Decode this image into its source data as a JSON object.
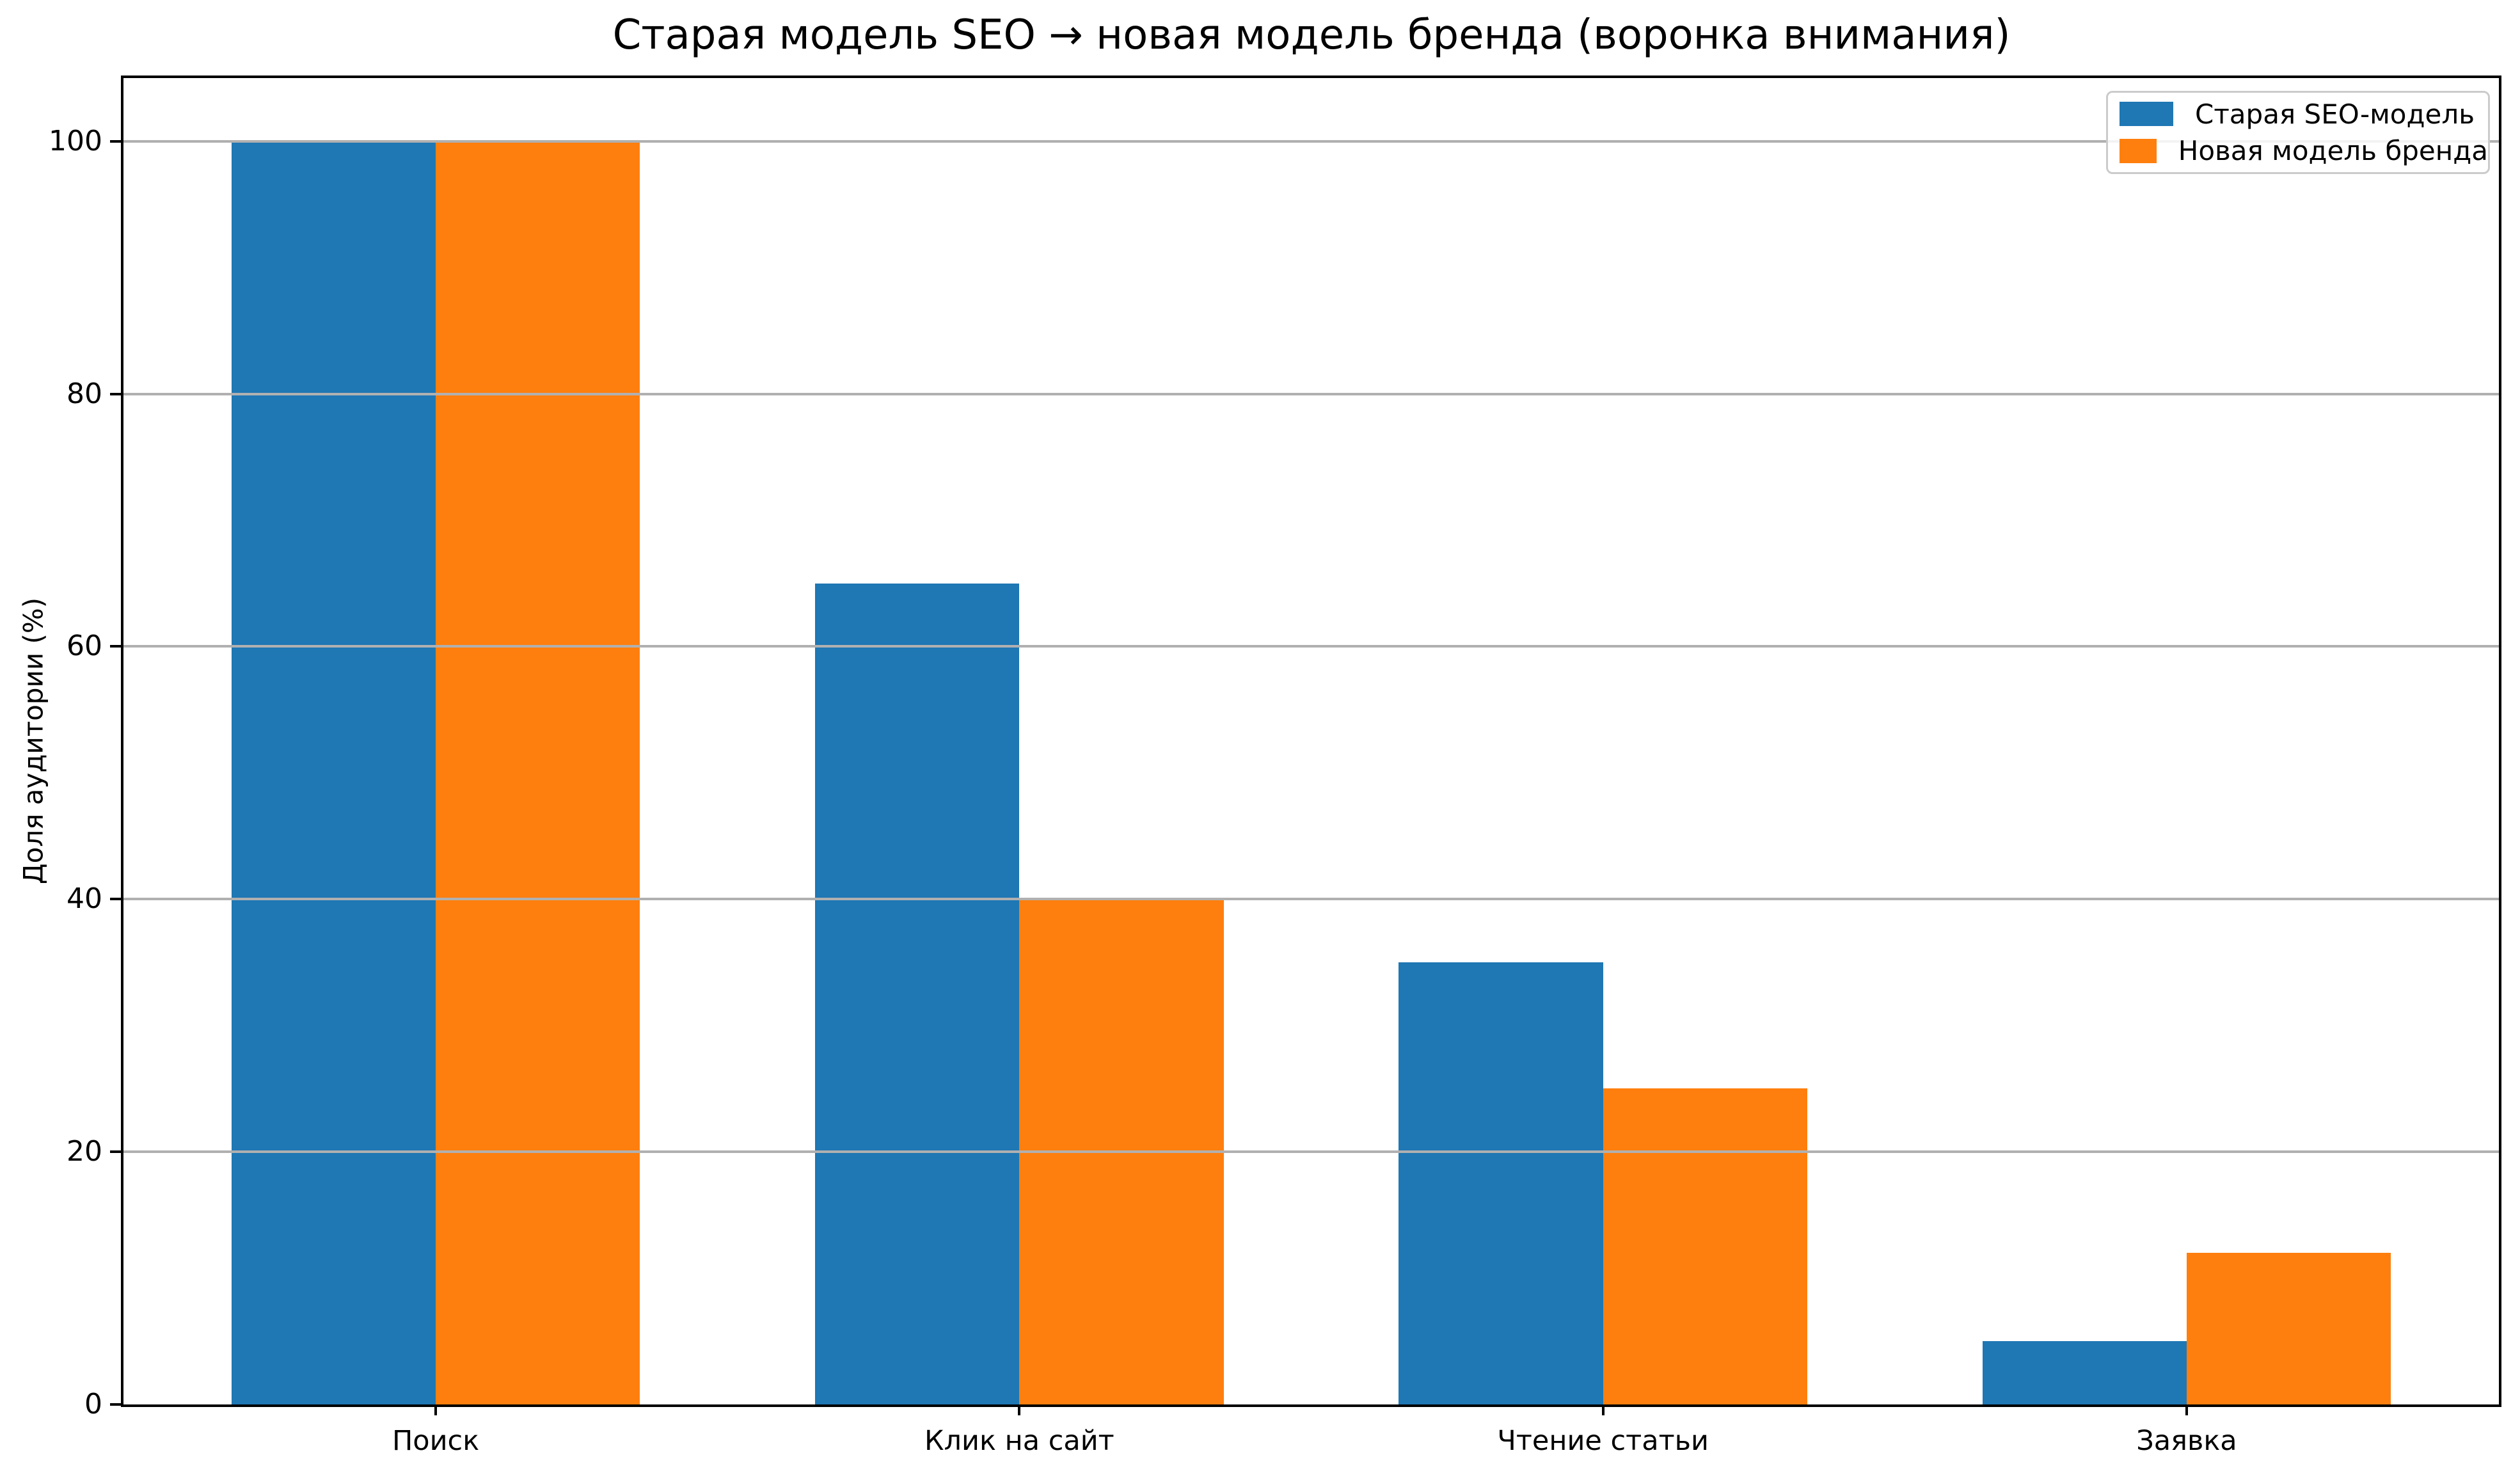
{
  "chart_data": {
    "type": "bar",
    "title": "Старая модель SEO → новая модель бренда (воронка внимания)",
    "xlabel": "",
    "ylabel": "Доля аудитории (%)",
    "categories": [
      "Поиск",
      "Клик на сайт",
      "Чтение статьи",
      "Заявка"
    ],
    "series": [
      {
        "name": "Старая SEO-модель",
        "color": "#1f77b4",
        "values": [
          100,
          65,
          35,
          5
        ]
      },
      {
        "name": "Новая модель бренда",
        "color": "#ff7f0e",
        "values": [
          100,
          40,
          25,
          12
        ]
      }
    ],
    "yticks": [
      0,
      20,
      40,
      60,
      80,
      100
    ],
    "ylim": [
      0,
      105
    ],
    "bar_width": 0.35,
    "grid": true,
    "grid_color": "#b0b0b0",
    "legend_position": "upper right"
  }
}
